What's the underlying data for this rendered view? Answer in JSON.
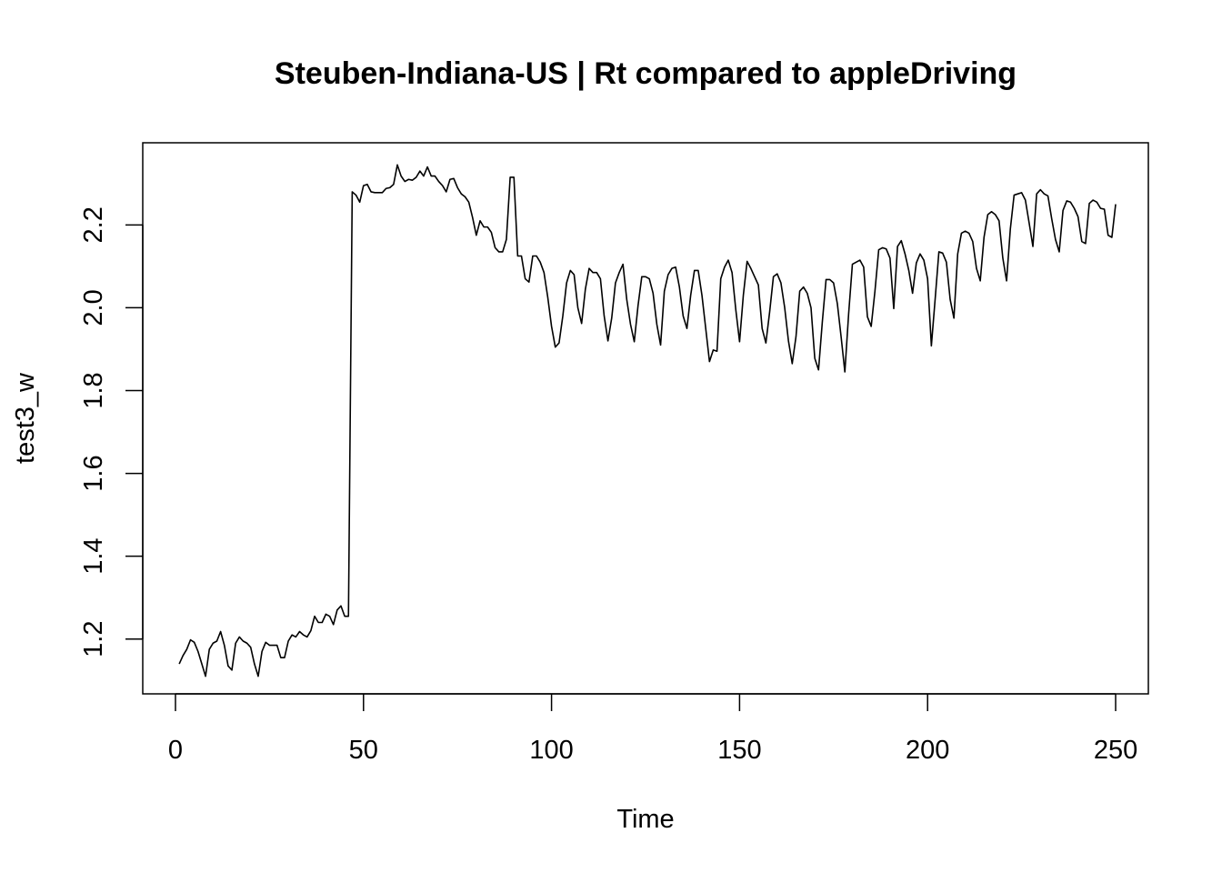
{
  "chart_data": {
    "type": "line",
    "title": "Steuben-Indiana-US | Rt compared to appleDriving",
    "xlabel": "Time",
    "ylabel": "test3_w",
    "xlim": [
      -8.7,
      258.7
    ],
    "ylim": [
      1.0676,
      2.3984
    ],
    "x_ticks": [
      0,
      50,
      100,
      150,
      200,
      250
    ],
    "y_ticks": [
      1.2,
      1.4,
      1.6,
      1.8,
      2.0,
      2.2
    ],
    "x_tick_labels": [
      "0",
      "50",
      "100",
      "150",
      "200",
      "250"
    ],
    "y_tick_labels": [
      "1.2",
      "1.4",
      "1.6",
      "1.8",
      "2.0",
      "2.2"
    ],
    "grid": false,
    "line_color": "#000000",
    "series": [
      {
        "x_start": 1,
        "values": [
          1.14,
          1.16,
          1.175,
          1.198,
          1.192,
          1.17,
          1.14,
          1.11,
          1.175,
          1.19,
          1.195,
          1.218,
          1.185,
          1.135,
          1.125,
          1.19,
          1.205,
          1.195,
          1.19,
          1.18,
          1.14,
          1.11,
          1.17,
          1.192,
          1.185,
          1.185,
          1.185,
          1.155,
          1.155,
          1.195,
          1.21,
          1.205,
          1.218,
          1.21,
          1.205,
          1.22,
          1.255,
          1.24,
          1.24,
          1.26,
          1.255,
          1.235,
          1.27,
          1.28,
          1.255,
          1.255,
          2.28,
          2.272,
          2.255,
          2.295,
          2.298,
          2.28,
          2.278,
          2.278,
          2.278,
          2.288,
          2.29,
          2.298,
          2.345,
          2.318,
          2.305,
          2.31,
          2.308,
          2.315,
          2.33,
          2.318,
          2.34,
          2.318,
          2.318,
          2.305,
          2.295,
          2.28,
          2.31,
          2.312,
          2.29,
          2.275,
          2.268,
          2.255,
          2.218,
          2.175,
          2.21,
          2.195,
          2.195,
          2.182,
          2.145,
          2.135,
          2.135,
          2.165,
          2.315,
          2.315,
          2.125,
          2.125,
          2.07,
          2.062,
          2.125,
          2.125,
          2.11,
          2.085,
          2.025,
          1.955,
          1.905,
          1.915,
          1.98,
          2.06,
          2.09,
          2.08,
          2.0,
          1.962,
          2.045,
          2.095,
          2.085,
          2.085,
          2.07,
          1.98,
          1.92,
          1.975,
          2.06,
          2.085,
          2.105,
          2.02,
          1.96,
          1.918,
          2.005,
          2.075,
          2.075,
          2.07,
          2.035,
          1.96,
          1.91,
          2.04,
          2.08,
          2.095,
          2.098,
          2.05,
          1.98,
          1.95,
          2.03,
          2.09,
          2.09,
          2.03,
          1.95,
          1.87,
          1.898,
          1.895,
          2.07,
          2.098,
          2.115,
          2.085,
          1.995,
          1.918,
          2.03,
          2.112,
          2.095,
          2.075,
          2.055,
          1.95,
          1.915,
          1.99,
          2.075,
          2.082,
          2.06,
          2.0,
          1.92,
          1.865,
          1.93,
          2.04,
          2.05,
          2.035,
          2.0,
          1.878,
          1.85,
          1.965,
          2.068,
          2.068,
          2.06,
          2.01,
          1.93,
          1.845,
          1.985,
          2.105,
          2.11,
          2.115,
          2.098,
          1.978,
          1.955,
          2.04,
          2.14,
          2.145,
          2.142,
          2.12,
          1.998,
          2.148,
          2.162,
          2.13,
          2.09,
          2.035,
          2.108,
          2.13,
          2.115,
          2.07,
          1.908,
          2.02,
          2.135,
          2.132,
          2.11,
          2.02,
          1.975,
          2.13,
          2.18,
          2.185,
          2.18,
          2.16,
          2.095,
          2.065,
          2.17,
          2.225,
          2.232,
          2.225,
          2.21,
          2.12,
          2.065,
          2.19,
          2.272,
          2.275,
          2.278,
          2.26,
          2.205,
          2.148,
          2.275,
          2.285,
          2.275,
          2.27,
          2.215,
          2.165,
          2.135,
          2.235,
          2.258,
          2.255,
          2.24,
          2.22,
          2.16,
          2.155,
          2.252,
          2.26,
          2.255,
          2.24,
          2.238,
          2.175,
          2.17,
          2.25
        ]
      }
    ]
  }
}
